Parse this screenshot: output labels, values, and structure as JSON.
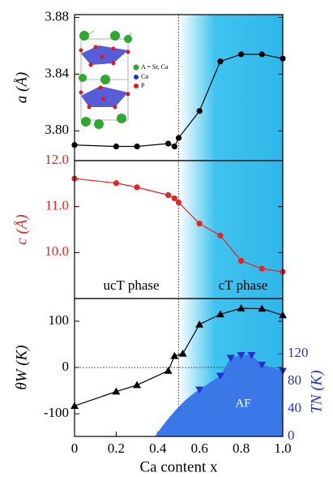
{
  "chart_data": [
    {
      "type": "line",
      "ylabel": "a (Å)",
      "label_color": "#000000",
      "xlim": [
        0,
        1
      ],
      "ylim": [
        3.779,
        3.882
      ],
      "yticks": [
        {
          "value": 3.8,
          "label": "3.80"
        },
        {
          "value": 3.84,
          "label": "3.84"
        },
        {
          "value": 3.88,
          "label": "3.88"
        }
      ],
      "boundary": 0.5,
      "inset_legend": [
        "A = Sr, Ca",
        "Co",
        "P"
      ],
      "series": [
        {
          "color": "#000000",
          "marker": "circle",
          "x": [
            0,
            0.2,
            0.3,
            0.45,
            0.48,
            0.5,
            0.6,
            0.7,
            0.8,
            0.9,
            1.0
          ],
          "values": [
            3.79,
            3.789,
            3.789,
            3.791,
            3.789,
            3.795,
            3.814,
            3.849,
            3.854,
            3.854,
            3.851
          ]
        }
      ]
    },
    {
      "type": "line",
      "ylabel": "c (Å)",
      "label_color": "#e8231f",
      "xlim": [
        0,
        1
      ],
      "ylim": [
        9.0,
        12.0
      ],
      "yticks": [
        {
          "value": 10,
          "label": "10.0"
        },
        {
          "value": 11,
          "label": "11.0"
        },
        {
          "value": 12,
          "label": "12.0"
        }
      ],
      "annotations": [
        "ucT phase",
        "cT phase"
      ],
      "series": [
        {
          "color": "#e8231f",
          "marker": "circle",
          "x": [
            0,
            0.2,
            0.3,
            0.45,
            0.48,
            0.5,
            0.6,
            0.7,
            0.8,
            0.9,
            1.0
          ],
          "values": [
            11.61,
            11.51,
            11.42,
            11.25,
            11.18,
            11.09,
            10.63,
            10.37,
            9.82,
            9.65,
            9.58
          ]
        }
      ]
    },
    {
      "type": "line",
      "ylabel": "θW (K)",
      "y2label": "TN (K)",
      "label_color": "#000000",
      "y2_color": "#2233cc",
      "xlabel": "Ca content x",
      "xlim": [
        0,
        1
      ],
      "ylim": [
        -149,
        149
      ],
      "y2lim": [
        0,
        200
      ],
      "xticks": [
        0,
        0.2,
        0.4,
        0.6,
        0.8,
        {
          "value": 1,
          "label": "1.0"
        }
      ],
      "yticks": [
        -100,
        0,
        100
      ],
      "y2ticks": [
        0,
        40,
        80,
        120
      ],
      "annotations": [
        "AF"
      ],
      "series": [
        {
          "color": "#000000",
          "marker": "triangle-up",
          "x": [
            0,
            0.2,
            0.3,
            0.45,
            0.48,
            0.52,
            0.6,
            0.7,
            0.8,
            0.9,
            1.0
          ],
          "values": [
            -83,
            -52,
            -38,
            -7,
            25,
            30,
            93,
            115,
            128,
            127,
            113
          ]
        },
        {
          "color": "#2233cc",
          "marker": "triangle-down",
          "axis": "y2",
          "fill": "#3a78e8",
          "x": [
            0.6,
            0.7,
            0.75,
            0.8,
            0.85,
            0.9,
            1.0
          ],
          "values": [
            68,
            88,
            114,
            118,
            118,
            104,
            95
          ]
        }
      ]
    }
  ]
}
